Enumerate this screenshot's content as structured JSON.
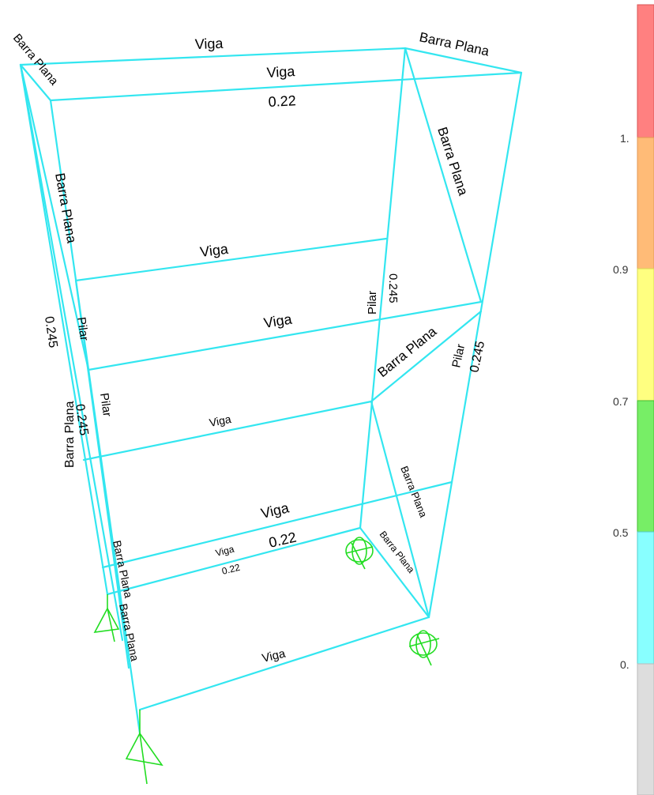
{
  "colors": {
    "member": "#33e6f0",
    "support": "#22dd22",
    "label": "#000000"
  },
  "labels": {
    "top_left_beam": "Viga",
    "top_right_beam": "Viga",
    "top_right_beam_value": "0.22",
    "top_left_corner": "Barra Plana",
    "top_right_corner": "Barra Plana",
    "right_diagonal_top": "Barra Plana",
    "left_column_brace": "Barra Plana",
    "mid_beam_upper": "Viga",
    "pillar_center": "Pilar",
    "pillar_center_value": "0.245",
    "mid_beam_lower": "Viga",
    "pillar_left_a": "Pilar",
    "left_value": "0.245",
    "diag_mid": "Barra Plana",
    "pillar_right": "Pilar",
    "pillar_right_value": "0.245",
    "left_overlap_a": "Barra Plana",
    "left_overlap_b": "0.245",
    "pillar_left_b": "Pilar",
    "beam_third": "Viga",
    "diag_right_lower": "Barra Plana",
    "beam_low_a": "Viga",
    "beam_low_a_value": "0.22",
    "beam_low_b": "Viga",
    "beam_low_b_value": "0.22",
    "diag_small": "Barra Plana",
    "left_bottom_brace_a": "Barra Plana",
    "left_bottom_brace_b": "Barra Plana",
    "beam_bottom": "Viga"
  },
  "legend": {
    "ticks": [
      "1.",
      "0.9",
      "0.7",
      "0.5",
      "0."
    ],
    "bands": [
      {
        "color": "#ff8080",
        "range": "above 1."
      },
      {
        "color": "#ffbb77",
        "range": "0.9 - 1."
      },
      {
        "color": "#ffff80",
        "range": "0.7 - 0.9"
      },
      {
        "color": "#77ee66",
        "range": "0.5 - 0.7"
      },
      {
        "color": "#88ffff",
        "range": "0. - 0.5"
      },
      {
        "color": "#dddddd",
        "range": "below 0."
      }
    ]
  },
  "supports": [
    {
      "name": "pinned"
    },
    {
      "name": "pinned"
    },
    {
      "name": "fixed"
    },
    {
      "name": "fixed"
    }
  ]
}
